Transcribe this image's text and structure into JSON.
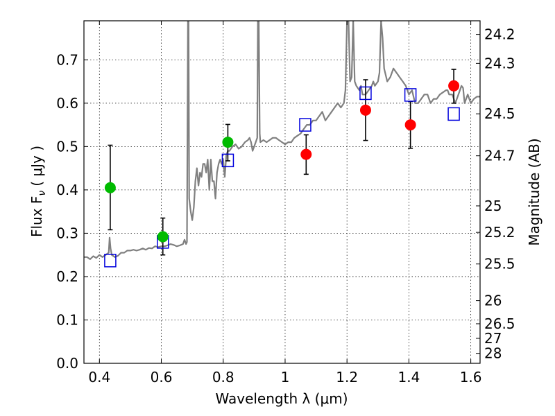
{
  "chart_data": {
    "type": "scatter",
    "title": "",
    "xlabel": "Wavelength  λ (μm)",
    "ylabel": "Flux  F",
    "ylabel_subscript": "ν",
    "ylabel_unit": "( μJy )",
    "ylabel_right": "Magnitude (AB)",
    "xlim": [
      0.35,
      1.63
    ],
    "ylim": [
      0.0,
      0.79
    ],
    "x_ticks": [
      0.4,
      0.6,
      0.8,
      1.0,
      1.2,
      1.4,
      1.6
    ],
    "x_tick_labels": [
      "0.4",
      "0.6",
      "0.8",
      "1",
      "1.2",
      "1.4",
      "1.6"
    ],
    "y_ticks": [
      0.0,
      0.1,
      0.2,
      0.3,
      0.4,
      0.5,
      0.6,
      0.7
    ],
    "y_tick_labels": [
      "0.0",
      "0.1",
      "0.2",
      "0.3",
      "0.4",
      "0.5",
      "0.6",
      "0.7"
    ],
    "right_ticks": [
      {
        "label": "24.2",
        "mag": 24.2
      },
      {
        "label": "24.3",
        "mag": 24.3
      },
      {
        "label": "24.5",
        "mag": 24.5
      },
      {
        "label": "24.7",
        "mag": 24.7
      },
      {
        "label": "25",
        "mag": 25.0
      },
      {
        "label": "25.2",
        "mag": 25.2
      },
      {
        "label": "25.5",
        "mag": 25.5
      },
      {
        "label": "26",
        "mag": 26.0
      },
      {
        "label": "26.5",
        "mag": 26.5
      },
      {
        "label": "27",
        "mag": 27.0
      },
      {
        "label": "28",
        "mag": 28.0
      }
    ],
    "grid": true,
    "colors": {
      "spectrum": "#808080",
      "green_points": "#00bb00",
      "red_points": "#ff0000",
      "model_squares": "#0000dd",
      "error_bars": "#000000"
    },
    "series": [
      {
        "kind": "line",
        "points": [
          [
            0.35,
            0.245
          ],
          [
            0.36,
            0.245
          ],
          [
            0.37,
            0.24
          ],
          [
            0.38,
            0.247
          ],
          [
            0.39,
            0.243
          ],
          [
            0.4,
            0.25
          ],
          [
            0.41,
            0.245
          ],
          [
            0.42,
            0.25
          ],
          [
            0.43,
            0.255
          ],
          [
            0.433,
            0.29
          ],
          [
            0.436,
            0.265
          ],
          [
            0.44,
            0.25
          ],
          [
            0.45,
            0.245
          ],
          [
            0.46,
            0.248
          ],
          [
            0.47,
            0.255
          ],
          [
            0.48,
            0.255
          ],
          [
            0.49,
            0.26
          ],
          [
            0.5,
            0.26
          ],
          [
            0.51,
            0.262
          ],
          [
            0.52,
            0.26
          ],
          [
            0.53,
            0.262
          ],
          [
            0.54,
            0.265
          ],
          [
            0.55,
            0.262
          ],
          [
            0.56,
            0.266
          ],
          [
            0.57,
            0.265
          ],
          [
            0.58,
            0.27
          ],
          [
            0.59,
            0.268
          ],
          [
            0.6,
            0.27
          ],
          [
            0.61,
            0.27
          ],
          [
            0.62,
            0.272
          ],
          [
            0.63,
            0.275
          ],
          [
            0.64,
            0.273
          ],
          [
            0.65,
            0.27
          ],
          [
            0.66,
            0.272
          ],
          [
            0.67,
            0.275
          ],
          [
            0.675,
            0.285
          ],
          [
            0.68,
            0.275
          ],
          [
            0.683,
            0.28
          ],
          [
            0.686,
            0.79
          ],
          [
            0.688,
            0.79
          ],
          [
            0.69,
            0.38
          ],
          [
            0.695,
            0.35
          ],
          [
            0.7,
            0.33
          ],
          [
            0.705,
            0.36
          ],
          [
            0.71,
            0.42
          ],
          [
            0.715,
            0.45
          ],
          [
            0.72,
            0.41
          ],
          [
            0.725,
            0.44
          ],
          [
            0.73,
            0.43
          ],
          [
            0.735,
            0.46
          ],
          [
            0.74,
            0.46
          ],
          [
            0.745,
            0.44
          ],
          [
            0.75,
            0.47
          ],
          [
            0.755,
            0.4
          ],
          [
            0.76,
            0.47
          ],
          [
            0.765,
            0.42
          ],
          [
            0.77,
            0.42
          ],
          [
            0.775,
            0.38
          ],
          [
            0.78,
            0.44
          ],
          [
            0.785,
            0.46
          ],
          [
            0.79,
            0.47
          ],
          [
            0.795,
            0.46
          ],
          [
            0.8,
            0.47
          ],
          [
            0.805,
            0.43
          ],
          [
            0.81,
            0.48
          ],
          [
            0.815,
            0.49
          ],
          [
            0.82,
            0.49
          ],
          [
            0.83,
            0.5
          ],
          [
            0.84,
            0.505
          ],
          [
            0.85,
            0.495
          ],
          [
            0.86,
            0.5
          ],
          [
            0.87,
            0.51
          ],
          [
            0.88,
            0.515
          ],
          [
            0.885,
            0.52
          ],
          [
            0.89,
            0.51
          ],
          [
            0.895,
            0.49
          ],
          [
            0.9,
            0.5
          ],
          [
            0.905,
            0.51
          ],
          [
            0.91,
            0.52
          ],
          [
            0.912,
            0.79
          ],
          [
            0.915,
            0.79
          ],
          [
            0.918,
            0.53
          ],
          [
            0.92,
            0.51
          ],
          [
            0.93,
            0.515
          ],
          [
            0.94,
            0.51
          ],
          [
            0.95,
            0.515
          ],
          [
            0.96,
            0.52
          ],
          [
            0.97,
            0.52
          ],
          [
            0.98,
            0.515
          ],
          [
            0.99,
            0.51
          ],
          [
            1.0,
            0.505
          ],
          [
            1.01,
            0.51
          ],
          [
            1.02,
            0.51
          ],
          [
            1.03,
            0.52
          ],
          [
            1.04,
            0.525
          ],
          [
            1.05,
            0.53
          ],
          [
            1.06,
            0.54
          ],
          [
            1.07,
            0.55
          ],
          [
            1.08,
            0.55
          ],
          [
            1.09,
            0.56
          ],
          [
            1.1,
            0.56
          ],
          [
            1.11,
            0.57
          ],
          [
            1.12,
            0.58
          ],
          [
            1.13,
            0.56
          ],
          [
            1.14,
            0.57
          ],
          [
            1.15,
            0.58
          ],
          [
            1.16,
            0.59
          ],
          [
            1.17,
            0.6
          ],
          [
            1.18,
            0.59
          ],
          [
            1.19,
            0.6
          ],
          [
            1.195,
            0.63
          ],
          [
            1.2,
            0.79
          ],
          [
            1.205,
            0.79
          ],
          [
            1.21,
            0.65
          ],
          [
            1.215,
            0.66
          ],
          [
            1.22,
            0.79
          ],
          [
            1.225,
            0.65
          ],
          [
            1.23,
            0.64
          ],
          [
            1.24,
            0.63
          ],
          [
            1.245,
            0.64
          ],
          [
            1.25,
            0.62
          ],
          [
            1.26,
            0.62
          ],
          [
            1.27,
            0.63
          ],
          [
            1.28,
            0.64
          ],
          [
            1.285,
            0.65
          ],
          [
            1.29,
            0.64
          ],
          [
            1.3,
            0.65
          ],
          [
            1.305,
            0.67
          ],
          [
            1.31,
            0.79
          ],
          [
            1.315,
            0.75
          ],
          [
            1.32,
            0.68
          ],
          [
            1.33,
            0.65
          ],
          [
            1.34,
            0.66
          ],
          [
            1.35,
            0.68
          ],
          [
            1.36,
            0.67
          ],
          [
            1.37,
            0.66
          ],
          [
            1.38,
            0.65
          ],
          [
            1.39,
            0.64
          ],
          [
            1.4,
            0.62
          ],
          [
            1.41,
            0.63
          ],
          [
            1.42,
            0.6
          ],
          [
            1.43,
            0.6
          ],
          [
            1.44,
            0.61
          ],
          [
            1.45,
            0.62
          ],
          [
            1.46,
            0.62
          ],
          [
            1.47,
            0.6
          ],
          [
            1.48,
            0.61
          ],
          [
            1.49,
            0.61
          ],
          [
            1.5,
            0.62
          ],
          [
            1.51,
            0.625
          ],
          [
            1.52,
            0.63
          ],
          [
            1.525,
            0.63
          ],
          [
            1.53,
            0.62
          ],
          [
            1.54,
            0.62
          ],
          [
            1.55,
            0.6
          ],
          [
            1.56,
            0.62
          ],
          [
            1.57,
            0.64
          ],
          [
            1.575,
            0.635
          ],
          [
            1.58,
            0.6
          ],
          [
            1.59,
            0.62
          ],
          [
            1.6,
            0.6
          ],
          [
            1.61,
            0.61
          ],
          [
            1.62,
            0.615
          ],
          [
            1.63,
            0.615
          ]
        ]
      },
      {
        "kind": "points",
        "marker": "circle",
        "color_key": "green_points",
        "points": [
          {
            "x": 0.435,
            "y": 0.405,
            "err_low": 0.308,
            "err_high": 0.503
          },
          {
            "x": 0.605,
            "y": 0.292,
            "err_low": 0.25,
            "err_high": 0.335
          },
          {
            "x": 0.815,
            "y": 0.51,
            "err_low": 0.467,
            "err_high": 0.551
          }
        ]
      },
      {
        "kind": "points",
        "marker": "circle",
        "color_key": "red_points",
        "points": [
          {
            "x": 1.068,
            "y": 0.482,
            "err_low": 0.436,
            "err_high": 0.527
          },
          {
            "x": 1.26,
            "y": 0.584,
            "err_low": 0.514,
            "err_high": 0.654
          },
          {
            "x": 1.405,
            "y": 0.55,
            "err_low": 0.496,
            "err_high": 0.604
          },
          {
            "x": 1.545,
            "y": 0.64,
            "err_low": 0.6,
            "err_high": 0.678
          }
        ]
      },
      {
        "kind": "points",
        "marker": "open-square",
        "color_key": "model_squares",
        "points": [
          {
            "x": 0.435,
            "y": 0.237
          },
          {
            "x": 0.605,
            "y": 0.28
          },
          {
            "x": 0.815,
            "y": 0.468
          },
          {
            "x": 1.065,
            "y": 0.55
          },
          {
            "x": 1.26,
            "y": 0.623
          },
          {
            "x": 1.405,
            "y": 0.619
          },
          {
            "x": 1.545,
            "y": 0.575
          }
        ]
      }
    ]
  }
}
